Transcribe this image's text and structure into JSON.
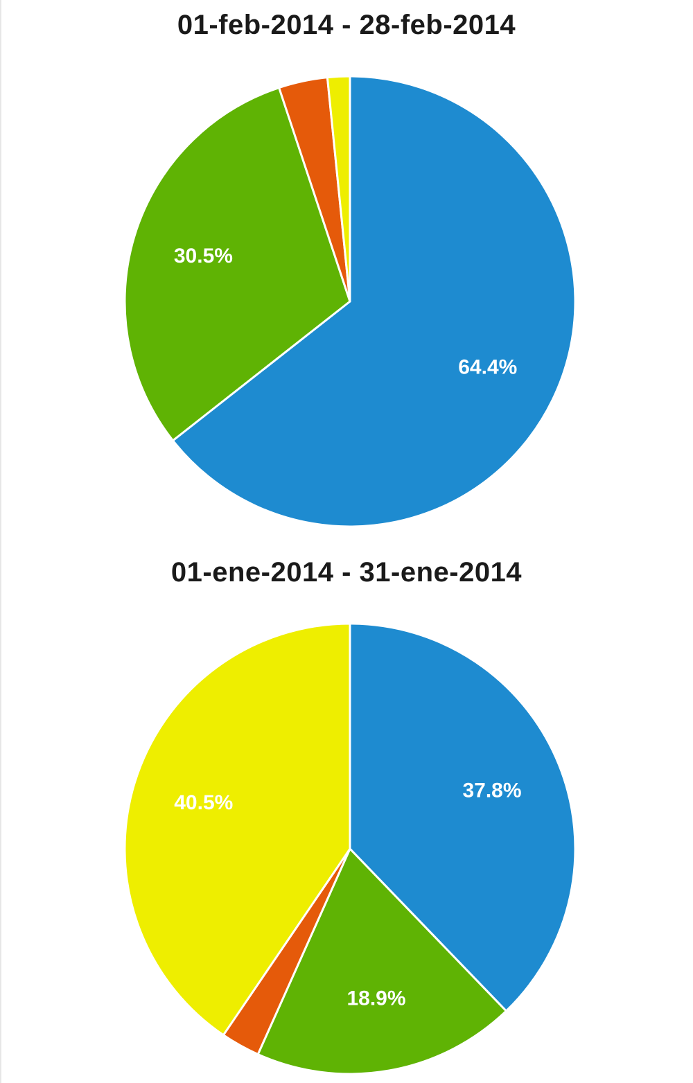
{
  "chart_data": [
    {
      "type": "pie",
      "title": "01-feb-2014 - 28-feb-2014",
      "start_angle_deg": 0,
      "direction": "clockwise",
      "slices": [
        {
          "label": "64.4%",
          "value": 64.4,
          "color": "#1e8bd0",
          "name": "blue"
        },
        {
          "label": "30.5%",
          "value": 30.5,
          "color": "#5fb304",
          "name": "green"
        },
        {
          "label": "",
          "value": 3.5,
          "color": "#e55a0a",
          "name": "orange"
        },
        {
          "label": "",
          "value": 1.6,
          "color": "#eeee00",
          "name": "yellow"
        }
      ]
    },
    {
      "type": "pie",
      "title": "01-ene-2014 - 31-ene-2014",
      "start_angle_deg": 0,
      "direction": "clockwise",
      "slices": [
        {
          "label": "37.8%",
          "value": 37.8,
          "color": "#1e8bd0",
          "name": "blue"
        },
        {
          "label": "18.9%",
          "value": 18.9,
          "color": "#5fb304",
          "name": "green"
        },
        {
          "label": "",
          "value": 2.8,
          "color": "#e55a0a",
          "name": "orange"
        },
        {
          "label": "40.5%",
          "value": 40.5,
          "color": "#eeee00",
          "name": "yellow"
        }
      ]
    }
  ]
}
